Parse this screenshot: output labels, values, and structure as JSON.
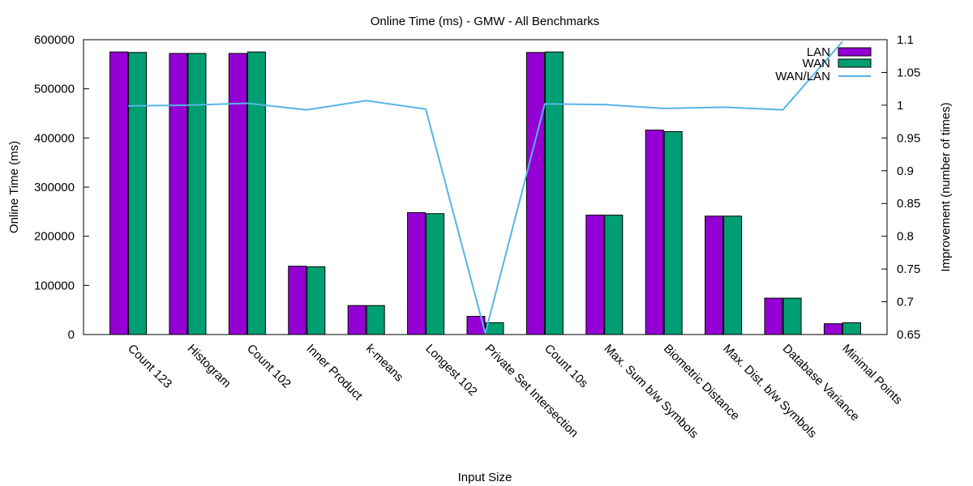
{
  "chart_data": {
    "type": "bar",
    "title": "Online Time (ms) - GMW - All Benchmarks",
    "xlabel": "Input Size",
    "ylabel": "Online Time (ms)",
    "y2label": "Improvement (number of times)",
    "ylim": [
      0,
      600000
    ],
    "y2lim": [
      0.65,
      1.1
    ],
    "y_ticks": [
      0,
      100000,
      200000,
      300000,
      400000,
      500000,
      600000
    ],
    "y2_ticks": [
      0.65,
      0.7,
      0.75,
      0.8,
      0.85,
      0.9,
      0.95,
      1,
      1.05,
      1.1
    ],
    "grid": false,
    "legend_position": "top-right",
    "categories": [
      "Count 123",
      "Histogram",
      "Count 102",
      "Inner Product",
      "k-means",
      "Longest 102",
      "Private Set Intersection",
      "Count 10s",
      "Max. Sum b/w Symbols",
      "Biometric Distance",
      "Max. Dist. b/w Symbols",
      "Database Variance",
      "Minimal Points"
    ],
    "series": [
      {
        "name": "LAN",
        "kind": "bar",
        "axis": "left",
        "color": "#9400d3",
        "values": [
          575000,
          572000,
          572000,
          139000,
          59000,
          248000,
          37000,
          574000,
          243000,
          416000,
          241000,
          74000,
          22000
        ]
      },
      {
        "name": "WAN",
        "kind": "bar",
        "axis": "left",
        "color": "#009e73",
        "values": [
          574000,
          572000,
          575000,
          138000,
          59000,
          246000,
          24000,
          575000,
          243000,
          413000,
          241000,
          74000,
          24000
        ]
      },
      {
        "name": "WAN/LAN",
        "kind": "line",
        "axis": "right",
        "color": "#56b4e9",
        "values": [
          0.999,
          1.0,
          1.003,
          0.993,
          1.007,
          0.994,
          0.652,
          1.002,
          1.001,
          0.995,
          0.997,
          0.993,
          1.097
        ]
      }
    ]
  }
}
